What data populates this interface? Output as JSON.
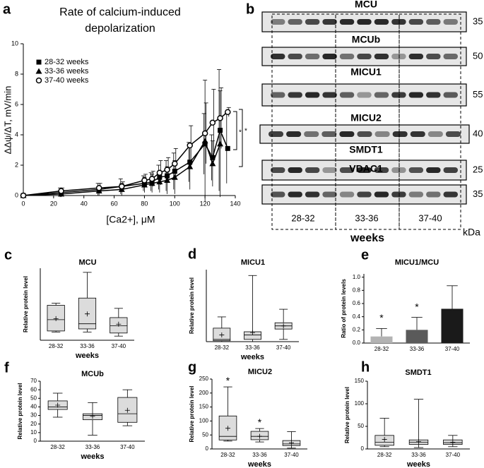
{
  "chart_data": [
    {
      "type": "line",
      "panel": "a",
      "title": "Rate of calcium-induced depolarization",
      "xlabel": "[Ca2+], μM",
      "ylabel": "ΔΔψ/ΔT, mV/min",
      "x": [
        0,
        25,
        50,
        65,
        80,
        85,
        90,
        95,
        100,
        110,
        120,
        125,
        130,
        135
      ],
      "series": [
        {
          "name": "28-32 weeks",
          "marker": "square",
          "color": "#000000",
          "values": [
            0,
            0.2,
            0.4,
            0.6,
            0.8,
            0.9,
            1.2,
            1.3,
            1.6,
            2.2,
            3.4,
            2.5,
            4.3,
            3.1
          ],
          "errors": [
            0,
            0.3,
            0.4,
            0.5,
            0.5,
            0.6,
            0.8,
            1.0,
            1.2,
            1.3,
            2.0,
            1.5,
            4.0,
            2.3
          ]
        },
        {
          "name": "33-36 weeks",
          "marker": "triangle",
          "color": "#000000",
          "values": [
            0,
            0.1,
            0.3,
            0.4,
            0.7,
            0.8,
            0.9,
            1.0,
            1.2,
            1.9,
            3.6,
            2.1,
            3.4,
            null
          ],
          "errors": [
            0,
            0.2,
            0.3,
            0.4,
            0.5,
            0.6,
            0.7,
            0.9,
            1.1,
            1.5,
            4.0,
            1.5,
            3.5,
            null
          ]
        },
        {
          "name": "37-40 weeks",
          "marker": "circle-open",
          "color": "#000000",
          "values": [
            0,
            0.3,
            0.5,
            0.6,
            1.0,
            1.1,
            1.5,
            1.7,
            2.1,
            3.3,
            4.1,
            4.8,
            5.1,
            5.5
          ],
          "errors": [
            0,
            0.2,
            0.3,
            0.3,
            0.4,
            0.5,
            0.8,
            0.8,
            1.0,
            1.3,
            2.0,
            2.2,
            2.0,
            0.3
          ]
        }
      ],
      "xlim": [
        0,
        140
      ],
      "xticks": [
        0,
        20,
        40,
        60,
        80,
        100,
        120,
        140
      ],
      "ylim": [
        0,
        10
      ],
      "yticks": [
        0,
        2,
        4,
        6,
        8,
        10
      ],
      "legend": "upper left",
      "annotations": [
        "*",
        "*"
      ]
    },
    {
      "type": "box",
      "panel": "c",
      "title": "MCU",
      "ylabel": "Relative protein level",
      "xlabel": "weeks",
      "categories": [
        "28-32",
        "33-36",
        "37-40"
      ],
      "min": [
        40,
        40,
        20
      ],
      "q1": [
        45,
        55,
        35
      ],
      "median": [
        100,
        80,
        70
      ],
      "q3": [
        170,
        205,
        110
      ],
      "max": [
        180,
        330,
        155
      ],
      "mean": [
        105,
        128,
        78
      ],
      "significance": [
        null,
        null,
        null
      ],
      "ylim": [
        0,
        350
      ],
      "color": "#dcdcdc"
    },
    {
      "type": "box",
      "panel": "d",
      "title": "MICU1",
      "ylabel": "Relative protein level",
      "xlabel": "weeks",
      "categories": [
        "28-32",
        "33-36",
        "37-40"
      ],
      "min": [
        0,
        0,
        5
      ],
      "q1": [
        2,
        5,
        28
      ],
      "median": [
        5,
        15,
        35
      ],
      "q3": [
        30,
        22,
        42
      ],
      "max": [
        55,
        147,
        72
      ],
      "mean": [
        15,
        20,
        35
      ],
      "significance": [
        null,
        null,
        null
      ],
      "ylim": [
        0,
        160
      ],
      "color": "#dcdcdc"
    },
    {
      "type": "bar",
      "panel": "e",
      "title": "MICU1/MCU",
      "ylabel": "Ratio of protein levels",
      "categories": [
        "28-32",
        "33-36",
        "37-40"
      ],
      "values": [
        0.1,
        0.2,
        0.52
      ],
      "errors": [
        0.12,
        0.19,
        0.35
      ],
      "colors": [
        "#b3b3b3",
        "#5a5a5a",
        "#1a1a1a"
      ],
      "significance": [
        "*",
        "*",
        null
      ],
      "ylim": [
        0,
        1.05
      ],
      "yticks": [
        {
          "value": 0,
          "label": "0.0"
        },
        {
          "value": 0.2,
          "label": "0.2"
        },
        {
          "value": 0.4,
          "label": "0.4"
        },
        {
          "value": 0.6,
          "label": "0.6"
        },
        {
          "value": 0.8,
          "label": "0.8"
        },
        {
          "value": 1,
          "label": "1.0"
        }
      ]
    },
    {
      "type": "box",
      "panel": "f",
      "title": "MCUb",
      "ylabel": "Relative protein level",
      "xlabel": "weeks",
      "categories": [
        "28-32",
        "33-36",
        "37-40"
      ],
      "min": [
        28,
        7,
        18
      ],
      "q1": [
        37,
        25,
        22
      ],
      "median": [
        40,
        30,
        32
      ],
      "q3": [
        47,
        32,
        51
      ],
      "max": [
        56,
        45,
        60
      ],
      "mean": [
        42,
        29,
        36
      ],
      "significance": [
        null,
        null,
        null
      ],
      "ylim": [
        0,
        70
      ],
      "yticks": [
        0,
        10,
        20,
        30,
        40,
        50,
        60,
        70
      ],
      "color": "#dcdcdc"
    },
    {
      "type": "box",
      "panel": "g",
      "title": "MICU2",
      "ylabel": "Relative protein level",
      "xlabel": "weeks",
      "categories": [
        "28-32",
        "33-36",
        "37-40"
      ],
      "min": [
        28,
        25,
        3
      ],
      "q1": [
        32,
        33,
        12
      ],
      "median": [
        45,
        45,
        18
      ],
      "q3": [
        118,
        63,
        30
      ],
      "max": [
        222,
        73,
        62
      ],
      "mean": [
        74,
        45,
        22
      ],
      "significance": [
        "*",
        "*",
        null
      ],
      "ylim": [
        0,
        250
      ],
      "yticks": [
        0,
        50,
        100,
        150,
        200,
        250
      ],
      "color": "#dcdcdc"
    },
    {
      "type": "box",
      "panel": "h",
      "title": "SMDT1",
      "ylabel": "Relative protein level",
      "xlabel": "weeks",
      "categories": [
        "28-32",
        "33-36",
        "37-40"
      ],
      "min": [
        5,
        3,
        5
      ],
      "q1": [
        8,
        10,
        10
      ],
      "median": [
        15,
        15,
        14
      ],
      "q3": [
        30,
        20,
        20
      ],
      "max": [
        68,
        110,
        30
      ],
      "mean": [
        21,
        16,
        15
      ],
      "significance": [
        null,
        null,
        null
      ],
      "ylim": [
        0,
        150
      ],
      "yticks": [
        0,
        50,
        100,
        150
      ],
      "color": "#dcdcdc"
    }
  ],
  "blot": {
    "panel": "b",
    "proteins": [
      {
        "name": "MCU",
        "kda": 35
      },
      {
        "name": "MCUb",
        "kda": 50
      },
      {
        "name": "MICU1",
        "kda": 55
      },
      {
        "name": "MICU2",
        "kda": 40
      },
      {
        "name": "SMDT1",
        "kda": 25
      },
      {
        "name": "VDAC1",
        "kda": 35
      }
    ],
    "groups": [
      "28-32",
      "33-36",
      "37-40"
    ],
    "group_label": "weeks",
    "unit_label": "kDa"
  }
}
